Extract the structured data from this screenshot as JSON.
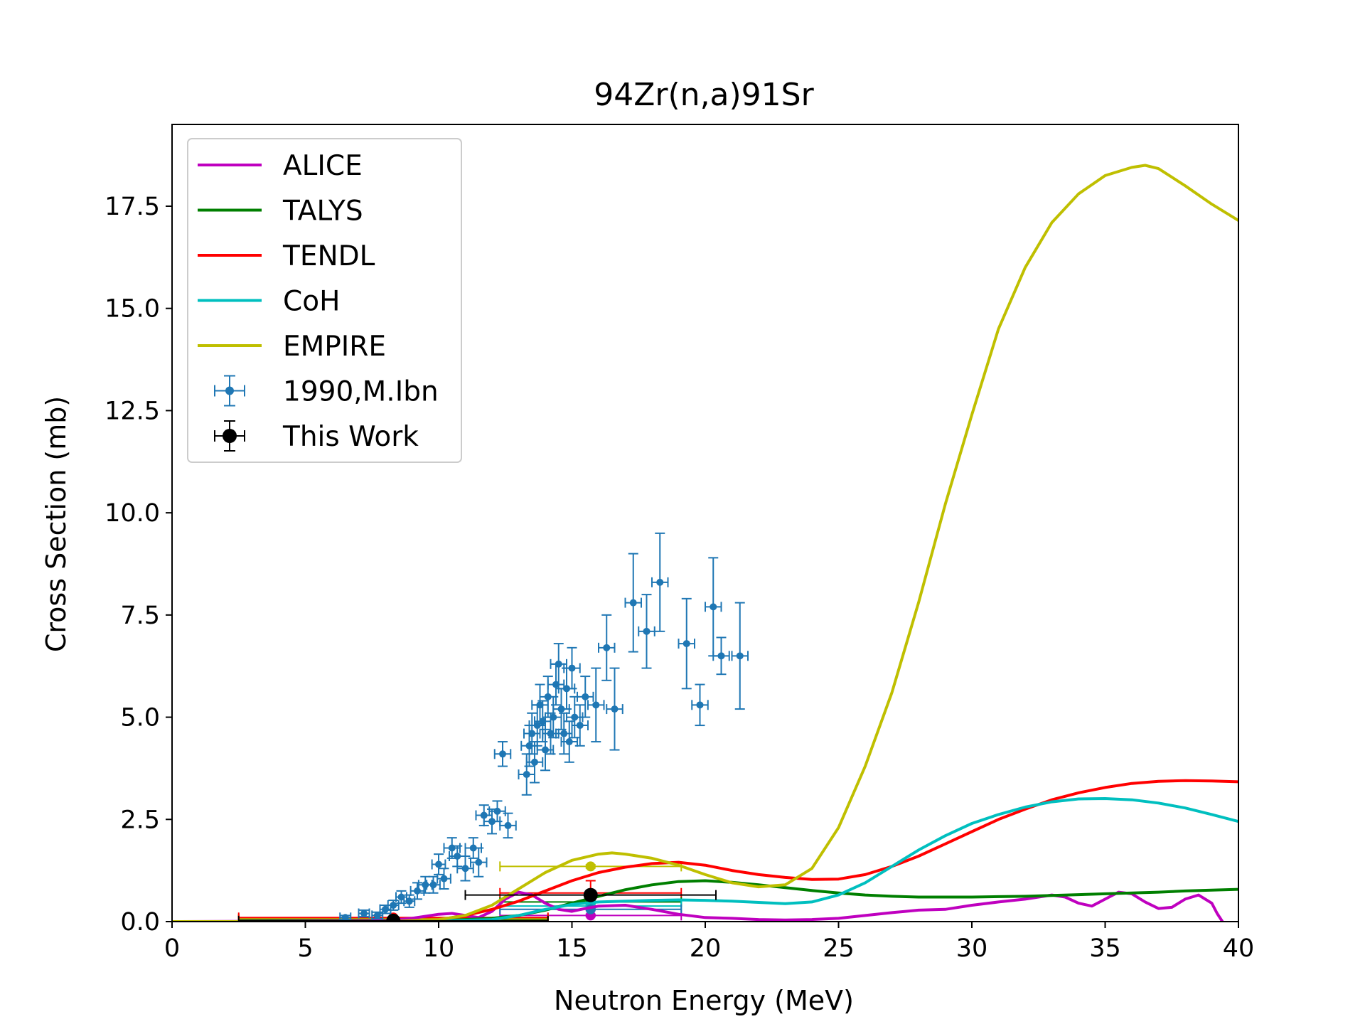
{
  "chart_data": {
    "type": "line",
    "title": "94Zr(n,a)91Sr",
    "xlabel": "Neutron Energy (MeV)",
    "ylabel": "Cross Section (mb)",
    "xlim": [
      0,
      40
    ],
    "ylim": [
      0,
      19.5
    ],
    "xticks": [
      0,
      5,
      10,
      15,
      20,
      25,
      30,
      35,
      40
    ],
    "xtick_labels": [
      "0",
      "5",
      "10",
      "15",
      "20",
      "25",
      "30",
      "35",
      "40"
    ],
    "yticks": [
      0,
      2.5,
      5,
      7.5,
      10,
      12.5,
      15,
      17.5
    ],
    "ytick_labels": [
      "0.0",
      "2.5",
      "5.0",
      "7.5",
      "10.0",
      "12.5",
      "15.0",
      "17.5"
    ],
    "grid": false,
    "legend_position": "top-left",
    "series": [
      {
        "name": "ALICE",
        "kind": "line",
        "color": "#bf00bf",
        "x": [
          0,
          8,
          9,
          10,
          10.5,
          11,
          11.5,
          12,
          12.5,
          13,
          13.5,
          14,
          14.5,
          15,
          15.5,
          16,
          17,
          18,
          19,
          20,
          21,
          22,
          23,
          24,
          25,
          26,
          27,
          28,
          29,
          30,
          31,
          32,
          33,
          33.5,
          34,
          34.5,
          35,
          35.5,
          36,
          36.5,
          37,
          37.5,
          38,
          38.5,
          39,
          39.2,
          39.4
        ],
        "y": [
          0,
          0.02,
          0.08,
          0.18,
          0.2,
          0.15,
          0.1,
          0.25,
          0.55,
          0.72,
          0.65,
          0.45,
          0.3,
          0.25,
          0.32,
          0.38,
          0.4,
          0.3,
          0.18,
          0.1,
          0.08,
          0.05,
          0.04,
          0.05,
          0.08,
          0.15,
          0.22,
          0.28,
          0.3,
          0.4,
          0.48,
          0.55,
          0.65,
          0.6,
          0.45,
          0.38,
          0.55,
          0.72,
          0.68,
          0.48,
          0.32,
          0.35,
          0.55,
          0.65,
          0.45,
          0.2,
          0
        ]
      },
      {
        "name": "TALYS",
        "kind": "line",
        "color": "#007f00",
        "x": [
          0,
          8,
          10,
          12,
          13,
          14,
          15,
          16,
          17,
          18,
          19,
          20,
          21,
          22,
          23,
          24,
          25,
          26,
          27,
          28,
          29,
          30,
          31,
          32,
          33,
          34,
          35,
          36,
          37,
          38,
          39,
          40
        ],
        "y": [
          0,
          0,
          0.02,
          0.08,
          0.15,
          0.28,
          0.45,
          0.62,
          0.78,
          0.9,
          0.98,
          1.0,
          0.96,
          0.9,
          0.83,
          0.76,
          0.7,
          0.65,
          0.62,
          0.6,
          0.6,
          0.6,
          0.61,
          0.62,
          0.64,
          0.66,
          0.68,
          0.7,
          0.72,
          0.75,
          0.77,
          0.79
        ]
      },
      {
        "name": "TENDL",
        "kind": "line",
        "color": "#ff0000",
        "x": [
          0,
          8,
          10,
          11,
          12,
          13,
          14,
          15,
          16,
          17,
          18,
          19,
          20,
          21,
          22,
          23,
          24,
          25,
          26,
          27,
          28,
          29,
          30,
          31,
          32,
          33,
          34,
          35,
          36,
          37,
          38,
          39,
          40
        ],
        "y": [
          0,
          0,
          0.05,
          0.15,
          0.3,
          0.5,
          0.75,
          1.0,
          1.2,
          1.33,
          1.42,
          1.45,
          1.38,
          1.25,
          1.15,
          1.08,
          1.03,
          1.04,
          1.15,
          1.35,
          1.6,
          1.9,
          2.2,
          2.5,
          2.75,
          2.98,
          3.15,
          3.28,
          3.38,
          3.43,
          3.45,
          3.44,
          3.42
        ]
      },
      {
        "name": "CoH",
        "kind": "line",
        "color": "#00bfbf",
        "x": [
          0,
          8,
          10,
          12,
          13,
          14,
          15,
          16,
          17,
          18,
          19,
          20,
          21,
          22,
          23,
          24,
          25,
          26,
          27,
          28,
          29,
          30,
          31,
          32,
          33,
          34,
          35,
          36,
          37,
          38,
          39,
          40
        ],
        "y": [
          0,
          0,
          0.02,
          0.05,
          0.15,
          0.3,
          0.42,
          0.48,
          0.5,
          0.52,
          0.53,
          0.52,
          0.5,
          0.47,
          0.44,
          0.48,
          0.65,
          0.95,
          1.35,
          1.75,
          2.1,
          2.4,
          2.62,
          2.8,
          2.93,
          3.0,
          3.01,
          2.98,
          2.9,
          2.78,
          2.62,
          2.45
        ]
      },
      {
        "name": "EMPIRE",
        "kind": "line",
        "color": "#bfbf00",
        "x": [
          0,
          8,
          10,
          11,
          12,
          13,
          14,
          15,
          16,
          16.5,
          17,
          18,
          19,
          20,
          21,
          22,
          23,
          24,
          25,
          26,
          27,
          28,
          29,
          30,
          31,
          32,
          33,
          34,
          35,
          36,
          36.5,
          37,
          38,
          39,
          40
        ],
        "y": [
          0,
          0,
          0.05,
          0.15,
          0.4,
          0.8,
          1.2,
          1.5,
          1.65,
          1.68,
          1.65,
          1.55,
          1.38,
          1.15,
          0.95,
          0.85,
          0.9,
          1.3,
          2.3,
          3.8,
          5.6,
          7.8,
          10.2,
          12.4,
          14.5,
          16.0,
          17.1,
          17.8,
          18.25,
          18.45,
          18.5,
          18.42,
          18.0,
          17.55,
          17.15
        ]
      },
      {
        "name": "1990,M.Ibn",
        "kind": "errorbar",
        "color": "#1f77b4",
        "x": [
          6.5,
          7.2,
          7.7,
          8.0,
          8.3,
          8.6,
          8.9,
          9.2,
          9.5,
          9.8,
          10.0,
          10.2,
          10.5,
          10.7,
          11.0,
          11.3,
          11.5,
          11.7,
          12.0,
          12.2,
          12.4,
          12.6,
          13.3,
          13.4,
          13.5,
          13.6,
          13.7,
          13.8,
          13.9,
          14.0,
          14.1,
          14.2,
          14.3,
          14.4,
          14.5,
          14.6,
          14.7,
          14.8,
          14.9,
          15.0,
          15.1,
          15.3,
          15.5,
          15.9,
          16.3,
          16.6,
          17.3,
          17.8,
          18.3,
          19.3,
          19.8,
          20.3,
          20.6,
          21.3
        ],
        "y": [
          0.1,
          0.2,
          0.15,
          0.3,
          0.4,
          0.6,
          0.5,
          0.75,
          0.9,
          0.9,
          1.4,
          1.05,
          1.8,
          1.6,
          1.3,
          1.8,
          1.45,
          2.6,
          2.45,
          2.7,
          4.1,
          2.35,
          3.6,
          4.3,
          4.6,
          3.9,
          4.8,
          5.3,
          4.9,
          4.2,
          5.5,
          4.6,
          5.0,
          5.8,
          6.3,
          5.2,
          4.6,
          5.7,
          4.4,
          6.2,
          5.0,
          4.8,
          5.5,
          5.3,
          6.7,
          5.2,
          7.8,
          7.1,
          8.3,
          6.8,
          5.3,
          7.7,
          6.5,
          6.5
        ],
        "yerr": [
          0.05,
          0.08,
          0.08,
          0.1,
          0.12,
          0.15,
          0.15,
          0.2,
          0.2,
          0.2,
          0.25,
          0.25,
          0.25,
          0.25,
          0.3,
          0.25,
          0.35,
          0.25,
          0.3,
          0.25,
          0.3,
          0.3,
          0.5,
          0.5,
          0.5,
          0.5,
          0.5,
          0.5,
          0.5,
          0.5,
          0.5,
          0.5,
          0.5,
          0.5,
          0.5,
          0.5,
          0.5,
          0.5,
          0.5,
          0.5,
          0.5,
          0.5,
          0.5,
          0.9,
          0.8,
          1.0,
          1.2,
          0.9,
          1.2,
          1.1,
          0.5,
          1.2,
          0.45,
          1.3
        ],
        "xerr": [
          0.2,
          0.2,
          0.2,
          0.2,
          0.2,
          0.2,
          0.2,
          0.25,
          0.25,
          0.25,
          0.25,
          0.25,
          0.3,
          0.3,
          0.3,
          0.3,
          0.3,
          0.3,
          0.3,
          0.3,
          0.3,
          0.3,
          0.3,
          0.3,
          0.3,
          0.3,
          0.3,
          0.3,
          0.3,
          0.3,
          0.3,
          0.3,
          0.3,
          0.3,
          0.3,
          0.3,
          0.3,
          0.3,
          0.3,
          0.3,
          0.3,
          0.3,
          0.3,
          0.3,
          0.3,
          0.3,
          0.3,
          0.3,
          0.3,
          0.3,
          0.3,
          0.3,
          0.3,
          0.3
        ]
      },
      {
        "name": "This Work",
        "kind": "errorbar",
        "color": "#000000",
        "x": [
          8.3,
          15.7
        ],
        "y": [
          0.02,
          0.65
        ],
        "yerr": [
          0.02,
          0.1
        ],
        "xerr": [
          5.8,
          4.7
        ]
      }
    ],
    "markers": [
      {
        "color": "#bfbf00",
        "x": 15.7,
        "y": 1.35,
        "xerr": 3.4,
        "yerr": 0.04
      },
      {
        "color": "#ff0000",
        "x": 15.7,
        "y": 0.7,
        "xerr": 3.4,
        "yerr": 0.3
      },
      {
        "color": "#007f00",
        "x": 15.7,
        "y": 0.48,
        "xerr": 3.4,
        "yerr": 0.03
      },
      {
        "color": "#00bfbf",
        "x": 15.7,
        "y": 0.38,
        "xerr": 3.4,
        "yerr": 0.03
      },
      {
        "color": "#bf00bf",
        "x": 15.7,
        "y": 0.15,
        "xerr": 3.4,
        "yerr": 0.03
      },
      {
        "color": "#1f77b4",
        "x": 15.7,
        "y": 0.3,
        "xerr": 3.4,
        "yerr": 0.03
      },
      {
        "color": "#ff7f0e",
        "x": 8.3,
        "y": 0.04,
        "xerr": 5.8,
        "yerr": 0.02
      },
      {
        "color": "#007f00",
        "x": 8.3,
        "y": 0.06,
        "xerr": 5.8,
        "yerr": 0.02
      },
      {
        "color": "#bfbf00",
        "x": 8.3,
        "y": 0.08,
        "xerr": 5.8,
        "yerr": 0.02
      },
      {
        "color": "#ff0000",
        "x": 8.3,
        "y": 0.1,
        "xerr": 5.8,
        "yerr": 0.02
      }
    ]
  }
}
